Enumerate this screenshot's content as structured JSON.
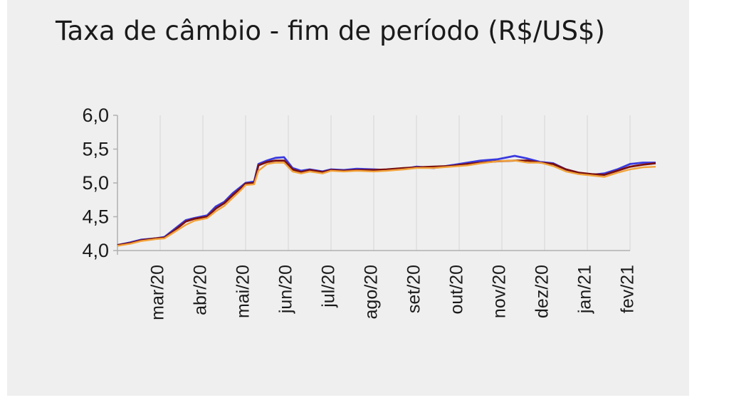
{
  "chart_data": {
    "type": "line",
    "title": "Taxa de câmbio - fim de período (R$/US$)",
    "xlabel": "",
    "ylabel": "",
    "ylim": [
      4.0,
      6.0
    ],
    "yticks": [
      "6,0",
      "5,5",
      "5,0",
      "4,5",
      "4,0"
    ],
    "ytick_values": [
      6.0,
      5.5,
      5.0,
      4.5,
      4.0
    ],
    "categories": [
      "mar/20",
      "abr/20",
      "mai/20",
      "jun/20",
      "jul/20",
      "ago/20",
      "set/20",
      "out/20",
      "nov/20",
      "dez/20",
      "jan/21",
      "fev/21"
    ],
    "x_range": [
      0,
      12
    ],
    "grid": "vertical",
    "series": [
      {
        "color": "#3a3adf",
        "points": [
          [
            0,
            4.08
          ],
          [
            0.3,
            4.12
          ],
          [
            0.55,
            4.16
          ],
          [
            0.9,
            4.18
          ],
          [
            1.1,
            4.2
          ],
          [
            1.3,
            4.3
          ],
          [
            1.6,
            4.45
          ],
          [
            1.8,
            4.48
          ],
          [
            2.1,
            4.52
          ],
          [
            2.3,
            4.65
          ],
          [
            2.5,
            4.72
          ],
          [
            2.7,
            4.85
          ],
          [
            2.9,
            4.95
          ],
          [
            3.0,
            5.0
          ],
          [
            3.2,
            5.02
          ],
          [
            3.3,
            5.28
          ],
          [
            3.5,
            5.33
          ],
          [
            3.7,
            5.37
          ],
          [
            3.9,
            5.38
          ],
          [
            4.1,
            5.22
          ],
          [
            4.3,
            5.18
          ],
          [
            4.5,
            5.2
          ],
          [
            4.8,
            5.17
          ],
          [
            5.0,
            5.2
          ],
          [
            5.3,
            5.19
          ],
          [
            5.6,
            5.21
          ],
          [
            6.0,
            5.2
          ],
          [
            6.3,
            5.19
          ],
          [
            6.7,
            5.21
          ],
          [
            7.0,
            5.24
          ],
          [
            7.4,
            5.22
          ],
          [
            7.8,
            5.26
          ],
          [
            8.2,
            5.3
          ],
          [
            8.5,
            5.33
          ],
          [
            8.9,
            5.35
          ],
          [
            9.3,
            5.4
          ],
          [
            9.6,
            5.36
          ],
          [
            9.9,
            5.31
          ],
          [
            10.2,
            5.29
          ],
          [
            10.5,
            5.2
          ],
          [
            10.8,
            5.15
          ],
          [
            11.1,
            5.12
          ],
          [
            11.4,
            5.14
          ],
          [
            11.7,
            5.2
          ],
          [
            12.0,
            5.28
          ],
          [
            12.3,
            5.3
          ],
          [
            12.6,
            5.3
          ]
        ]
      },
      {
        "color": "#7a1010",
        "points": [
          [
            0,
            4.08
          ],
          [
            0.3,
            4.11
          ],
          [
            0.55,
            4.15
          ],
          [
            0.9,
            4.18
          ],
          [
            1.1,
            4.19
          ],
          [
            1.3,
            4.28
          ],
          [
            1.6,
            4.43
          ],
          [
            1.8,
            4.47
          ],
          [
            2.1,
            4.5
          ],
          [
            2.3,
            4.62
          ],
          [
            2.5,
            4.7
          ],
          [
            2.7,
            4.82
          ],
          [
            2.9,
            4.93
          ],
          [
            3.0,
            4.99
          ],
          [
            3.2,
            5.0
          ],
          [
            3.3,
            5.26
          ],
          [
            3.5,
            5.31
          ],
          [
            3.7,
            5.33
          ],
          [
            3.9,
            5.33
          ],
          [
            4.1,
            5.2
          ],
          [
            4.3,
            5.16
          ],
          [
            4.5,
            5.19
          ],
          [
            4.8,
            5.16
          ],
          [
            5.0,
            5.19
          ],
          [
            5.3,
            5.18
          ],
          [
            5.6,
            5.19
          ],
          [
            6.0,
            5.19
          ],
          [
            6.3,
            5.2
          ],
          [
            6.7,
            5.22
          ],
          [
            7.0,
            5.23
          ],
          [
            7.4,
            5.24
          ],
          [
            7.8,
            5.25
          ],
          [
            8.2,
            5.28
          ],
          [
            8.5,
            5.3
          ],
          [
            8.9,
            5.32
          ],
          [
            9.3,
            5.33
          ],
          [
            9.6,
            5.33
          ],
          [
            9.9,
            5.3
          ],
          [
            10.2,
            5.28
          ],
          [
            10.5,
            5.2
          ],
          [
            10.8,
            5.15
          ],
          [
            11.1,
            5.13
          ],
          [
            11.4,
            5.12
          ],
          [
            11.7,
            5.18
          ],
          [
            12.0,
            5.24
          ],
          [
            12.3,
            5.27
          ],
          [
            12.6,
            5.29
          ]
        ]
      },
      {
        "color": "#f2a33a",
        "points": [
          [
            0,
            4.07
          ],
          [
            0.3,
            4.1
          ],
          [
            0.55,
            4.14
          ],
          [
            0.9,
            4.17
          ],
          [
            1.1,
            4.18
          ],
          [
            1.3,
            4.26
          ],
          [
            1.6,
            4.38
          ],
          [
            1.8,
            4.44
          ],
          [
            2.1,
            4.48
          ],
          [
            2.3,
            4.58
          ],
          [
            2.5,
            4.66
          ],
          [
            2.7,
            4.78
          ],
          [
            2.9,
            4.9
          ],
          [
            3.0,
            4.97
          ],
          [
            3.2,
            4.98
          ],
          [
            3.3,
            5.18
          ],
          [
            3.5,
            5.28
          ],
          [
            3.7,
            5.3
          ],
          [
            3.9,
            5.3
          ],
          [
            4.1,
            5.17
          ],
          [
            4.3,
            5.14
          ],
          [
            4.5,
            5.17
          ],
          [
            4.8,
            5.14
          ],
          [
            5.0,
            5.18
          ],
          [
            5.3,
            5.17
          ],
          [
            5.6,
            5.18
          ],
          [
            6.0,
            5.17
          ],
          [
            6.3,
            5.18
          ],
          [
            6.7,
            5.2
          ],
          [
            7.0,
            5.22
          ],
          [
            7.4,
            5.22
          ],
          [
            7.8,
            5.24
          ],
          [
            8.2,
            5.26
          ],
          [
            8.5,
            5.29
          ],
          [
            8.9,
            5.32
          ],
          [
            9.3,
            5.33
          ],
          [
            9.6,
            5.3
          ],
          [
            9.9,
            5.3
          ],
          [
            10.2,
            5.25
          ],
          [
            10.5,
            5.17
          ],
          [
            10.8,
            5.13
          ],
          [
            11.1,
            5.11
          ],
          [
            11.4,
            5.09
          ],
          [
            11.7,
            5.15
          ],
          [
            12.0,
            5.2
          ],
          [
            12.3,
            5.23
          ],
          [
            12.6,
            5.24
          ]
        ]
      }
    ]
  }
}
